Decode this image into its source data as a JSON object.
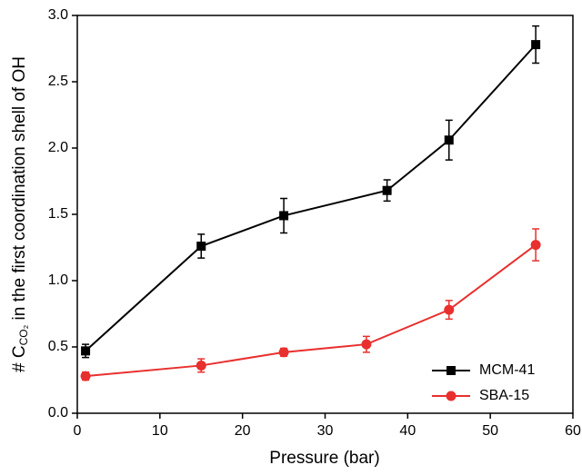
{
  "chart_data": {
    "type": "line",
    "x_label": "Pressure (bar)",
    "y_label": [
      "# C",
      "CO₂",
      " in the first coordination shell of OH"
    ],
    "xlim": [
      0,
      60
    ],
    "xticks": [
      0,
      10,
      20,
      30,
      40,
      50,
      60
    ],
    "ylim": [
      0,
      3
    ],
    "yticks": [
      {
        "value": 0,
        "label": "0.0"
      },
      0.5,
      {
        "value": 1,
        "label": "1.0"
      },
      1.5,
      {
        "value": 2,
        "label": "2.0"
      },
      2.5,
      {
        "value": 3,
        "label": "3.0"
      }
    ],
    "legend": "lower right",
    "series": [
      {
        "name": "MCM-41",
        "color": "#000000",
        "marker": "square",
        "x": [
          1,
          15,
          25,
          37.5,
          45,
          55.5
        ],
        "values": [
          0.47,
          1.26,
          1.49,
          1.68,
          2.06,
          2.78
        ],
        "errors": [
          0.05,
          0.09,
          0.13,
          0.08,
          0.15,
          0.14
        ]
      },
      {
        "name": "SBA-15",
        "color": "#e8302e",
        "marker": "circle",
        "x": [
          1,
          15,
          25,
          35,
          45,
          55.5
        ],
        "values": [
          0.28,
          0.36,
          0.46,
          0.52,
          0.78,
          1.27
        ],
        "errors": [
          0.03,
          0.05,
          0.03,
          0.06,
          0.07,
          0.12
        ]
      }
    ]
  }
}
